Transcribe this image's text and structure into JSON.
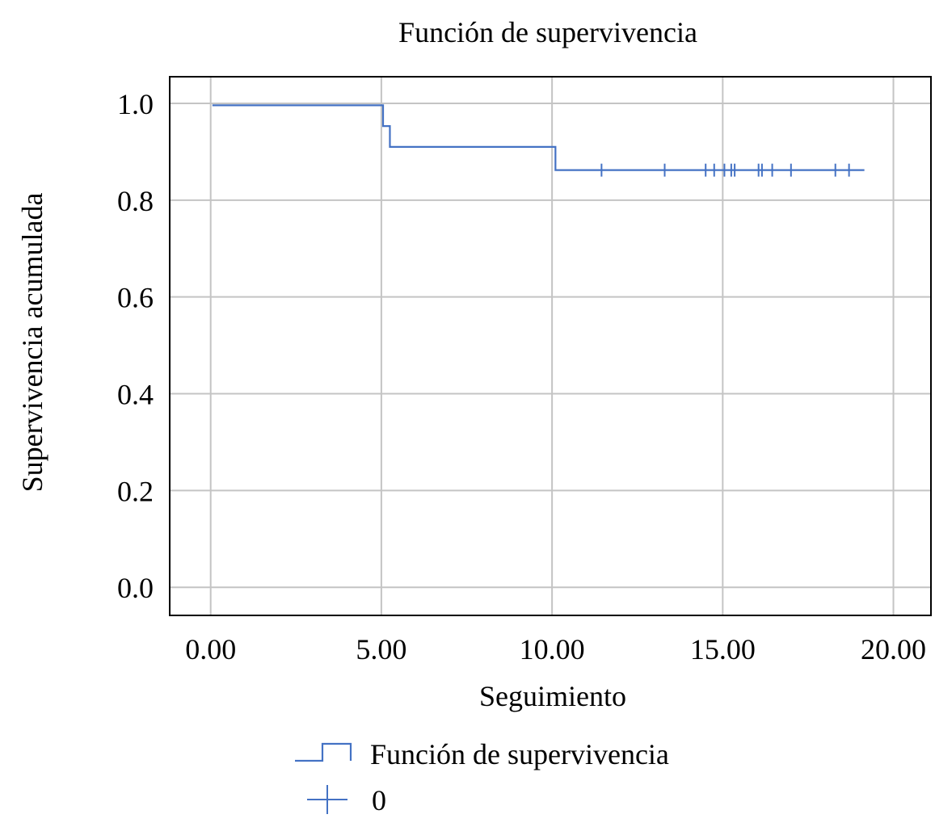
{
  "chart_data": {
    "type": "line",
    "title": "Función de supervivencia",
    "xlabel": "Seguimiento",
    "ylabel": "Supervivencia acumulada",
    "xlim": [
      -1.2,
      21.1
    ],
    "ylim": [
      -0.058,
      1.055
    ],
    "xticks": [
      0,
      5,
      10,
      15,
      20
    ],
    "xtick_labels": [
      "0.00",
      "5.00",
      "10.00",
      "15.00",
      "20.00"
    ],
    "yticks": [
      0,
      0.2,
      0.4,
      0.6,
      0.8,
      1.0
    ],
    "ytick_labels": [
      "0.0",
      "0.2",
      "0.4",
      "0.6",
      "0.8",
      "1.0"
    ],
    "grid": true,
    "legend_position": "bottom-center",
    "series": [
      {
        "name": "Función de supervivencia",
        "kind": "step",
        "color": "#4472c4",
        "x": [
          0.05,
          5.05,
          5.25,
          10.1,
          19.15
        ],
        "y": [
          0.996,
          0.953,
          0.91,
          0.862,
          0.862
        ]
      },
      {
        "name": "0",
        "kind": "censored",
        "color": "#4472c4",
        "marker": "plus",
        "x": [
          11.45,
          13.3,
          14.5,
          14.75,
          15.05,
          15.25,
          15.35,
          16.05,
          16.15,
          16.45,
          17.0,
          18.3,
          18.7
        ],
        "y": [
          0.862,
          0.862,
          0.862,
          0.862,
          0.862,
          0.862,
          0.862,
          0.862,
          0.862,
          0.862,
          0.862,
          0.862,
          0.862
        ]
      }
    ]
  }
}
